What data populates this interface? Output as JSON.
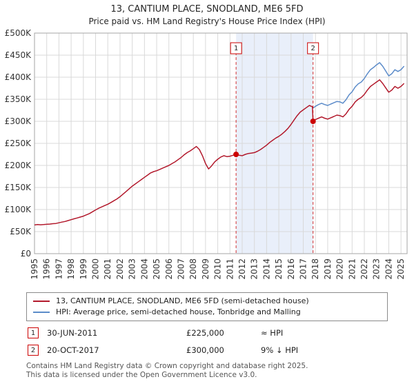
{
  "colors": {
    "grid": "#d9d9d9",
    "axis_border": "#a6a6a6",
    "sale_marker": "#cc0000",
    "flag_text": "#222222"
  },
  "chart_data": {
    "type": "line",
    "title": "13, CANTIUM PLACE, SNODLAND, ME6 5FD",
    "subtitle": "Price paid vs. HM Land Registry's House Price Index (HPI)",
    "xlabel": "",
    "ylabel": "",
    "x_range": [
      1995,
      2025.5
    ],
    "y_range": [
      0,
      500000
    ],
    "x_ticks": [
      1995,
      1996,
      1997,
      1998,
      1999,
      2000,
      2001,
      2002,
      2003,
      2004,
      2005,
      2006,
      2007,
      2008,
      2009,
      2010,
      2011,
      2012,
      2013,
      2014,
      2015,
      2016,
      2017,
      2018,
      2019,
      2020,
      2021,
      2022,
      2023,
      2024,
      2025
    ],
    "y_ticks": [
      {
        "value": 0,
        "label": "£0"
      },
      {
        "value": 50000,
        "label": "£50K"
      },
      {
        "value": 100000,
        "label": "£100K"
      },
      {
        "value": 150000,
        "label": "£150K"
      },
      {
        "value": 200000,
        "label": "£200K"
      },
      {
        "value": 250000,
        "label": "£250K"
      },
      {
        "value": 300000,
        "label": "£300K"
      },
      {
        "value": 350000,
        "label": "£350K"
      },
      {
        "value": 400000,
        "label": "£400K"
      },
      {
        "value": 450000,
        "label": "£450K"
      },
      {
        "value": 500000,
        "label": "£500K"
      }
    ],
    "shaded_region": {
      "from": 2011.5,
      "to": 2017.8,
      "color": "#e9effa"
    },
    "series": [
      {
        "name": "13, CANTIUM PLACE, SNODLAND, ME6 5FD (semi-detached house)",
        "color": "#b2182b",
        "data_name": "property-price-line",
        "x": [
          1995,
          1995.25,
          1995.5,
          1995.75,
          1996,
          1996.25,
          1996.5,
          1996.75,
          1997,
          1997.25,
          1997.5,
          1997.75,
          1998,
          1998.25,
          1998.5,
          1998.75,
          1999,
          1999.25,
          1999.5,
          1999.75,
          2000,
          2000.25,
          2000.5,
          2000.75,
          2001,
          2001.25,
          2001.5,
          2001.75,
          2002,
          2002.25,
          2002.5,
          2002.75,
          2003,
          2003.25,
          2003.5,
          2003.75,
          2004,
          2004.25,
          2004.5,
          2004.75,
          2005,
          2005.25,
          2005.5,
          2005.75,
          2006,
          2006.25,
          2006.5,
          2006.75,
          2007,
          2007.25,
          2007.5,
          2007.75,
          2008,
          2008.25,
          2008.5,
          2008.75,
          2009,
          2009.25,
          2009.5,
          2009.75,
          2010,
          2010.25,
          2010.5,
          2010.75,
          2011,
          2011.25,
          2011.5,
          2011.75,
          2012,
          2012.25,
          2012.5,
          2012.75,
          2013,
          2013.25,
          2013.5,
          2013.75,
          2014,
          2014.25,
          2014.5,
          2014.75,
          2015,
          2015.25,
          2015.5,
          2015.75,
          2016,
          2016.25,
          2016.5,
          2016.75,
          2017,
          2017.25,
          2017.5,
          2017.75,
          2017.8,
          2018,
          2018.25,
          2018.5,
          2018.75,
          2019,
          2019.25,
          2019.5,
          2019.75,
          2020,
          2020.25,
          2020.5,
          2020.75,
          2021,
          2021.25,
          2021.5,
          2021.75,
          2022,
          2022.25,
          2022.5,
          2022.75,
          2023,
          2023.25,
          2023.5,
          2023.75,
          2024,
          2024.25,
          2024.5,
          2024.75,
          2025,
          2025.25
        ],
        "y": [
          65000,
          66000,
          65500,
          66000,
          66500,
          67000,
          68000,
          68500,
          70000,
          71500,
          73000,
          75000,
          77000,
          79000,
          81000,
          83000,
          85000,
          88000,
          91000,
          95000,
          99000,
          103000,
          106000,
          109000,
          112000,
          116000,
          120000,
          124000,
          129000,
          135000,
          141000,
          147000,
          153000,
          158000,
          163000,
          168000,
          173000,
          178000,
          183000,
          186000,
          188000,
          191000,
          194000,
          197000,
          200000,
          204000,
          208000,
          213000,
          218000,
          224000,
          229000,
          233000,
          238000,
          243000,
          236000,
          222000,
          204000,
          192000,
          199000,
          208000,
          214000,
          219000,
          222000,
          220000,
          221000,
          223000,
          225000,
          223000,
          222000,
          225000,
          227000,
          228000,
          229000,
          232000,
          236000,
          241000,
          246000,
          252000,
          257000,
          262000,
          266000,
          271000,
          277000,
          284000,
          293000,
          303000,
          313000,
          321000,
          326000,
          331000,
          336000,
          333000,
          300000,
          304000,
          307000,
          310000,
          307000,
          305000,
          308000,
          311000,
          314000,
          313000,
          310000,
          317000,
          327000,
          334000,
          344000,
          350000,
          354000,
          361000,
          371000,
          379000,
          384000,
          389000,
          394000,
          386000,
          376000,
          366000,
          371000,
          379000,
          375000,
          379000,
          386000
        ]
      },
      {
        "name": "HPI: Average price, semi-detached house, Tonbridge and Malling",
        "color": "#5b8bc9",
        "data_name": "hpi-line",
        "x": [
          2017.8,
          2018,
          2018.25,
          2018.5,
          2018.75,
          2019,
          2019.25,
          2019.5,
          2019.75,
          2020,
          2020.25,
          2020.5,
          2020.75,
          2021,
          2021.25,
          2021.5,
          2021.75,
          2022,
          2022.25,
          2022.5,
          2022.75,
          2023,
          2023.25,
          2023.5,
          2023.75,
          2024,
          2024.25,
          2024.5,
          2024.75,
          2025,
          2025.25
        ],
        "y": [
          330000,
          334000,
          338000,
          341000,
          338000,
          336000,
          339000,
          342000,
          345000,
          344000,
          341000,
          349000,
          360000,
          367000,
          378000,
          385000,
          389000,
          397000,
          408000,
          417000,
          422000,
          428000,
          433000,
          425000,
          414000,
          403000,
          408000,
          417000,
          413000,
          417000,
          425000
        ]
      }
    ],
    "sales": [
      {
        "n": 1,
        "x": 2011.5,
        "y": 225000,
        "date": "30-JUN-2011",
        "price": "£225,000",
        "note": "≈ HPI"
      },
      {
        "n": 2,
        "x": 2017.8,
        "y": 300000,
        "date": "20-OCT-2017",
        "price": "£300,000",
        "note": "9% ↓ HPI"
      }
    ]
  },
  "footer": {
    "line1": "Contains HM Land Registry data © Crown copyright and database right 2025.",
    "line2": "This data is licensed under the Open Government Licence v3.0."
  }
}
